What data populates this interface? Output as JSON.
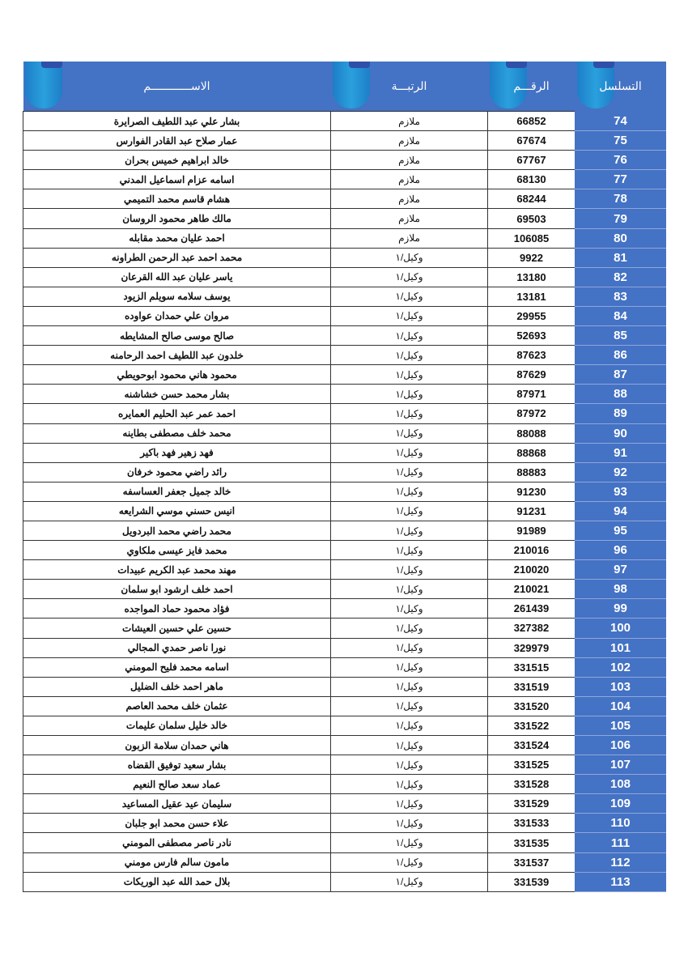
{
  "headers": {
    "seq": "التسلسل",
    "number": "الرقـــم",
    "rank": "الرتبـــة",
    "name": "الاســــــــــــم"
  },
  "colors": {
    "header_bg": "#4472c4",
    "seq_bg": "#4472c4"
  },
  "rows": [
    {
      "seq": "74",
      "number": "66852",
      "rank": "ملازم",
      "name": "بشار علي عبد اللطيف الصرايرة"
    },
    {
      "seq": "75",
      "number": "67674",
      "rank": "ملازم",
      "name": "عمار صلاح عبد القادر الفوارس"
    },
    {
      "seq": "76",
      "number": "67767",
      "rank": "ملازم",
      "name": "خالد ابراهيم خميس بحران"
    },
    {
      "seq": "77",
      "number": "68130",
      "rank": "ملازم",
      "name": "اسامه عزام اسماعيل المدني"
    },
    {
      "seq": "78",
      "number": "68244",
      "rank": "ملازم",
      "name": "هشام قاسم محمد التميمي"
    },
    {
      "seq": "79",
      "number": "69503",
      "rank": "ملازم",
      "name": "مالك طاهر محمود الروسان"
    },
    {
      "seq": "80",
      "number": "106085",
      "rank": "ملازم",
      "name": "احمد عليان محمد مقابله"
    },
    {
      "seq": "81",
      "number": "9922",
      "rank": "وكيل/١",
      "name": "محمد احمد عبد الرحمن الطراونه"
    },
    {
      "seq": "82",
      "number": "13180",
      "rank": "وكيل/١",
      "name": "ياسر عليان عبد الله القرعان"
    },
    {
      "seq": "83",
      "number": "13181",
      "rank": "وكيل/١",
      "name": "يوسف سلامه سويلم الزيود"
    },
    {
      "seq": "84",
      "number": "29955",
      "rank": "وكيل/١",
      "name": "مروان علي حمدان عواوده"
    },
    {
      "seq": "85",
      "number": "52693",
      "rank": "وكيل/١",
      "name": "صالح موسى صالح المشايطه"
    },
    {
      "seq": "86",
      "number": "87623",
      "rank": "وكيل/١",
      "name": "خلدون عبد اللطيف احمد الرحامنه"
    },
    {
      "seq": "87",
      "number": "87629",
      "rank": "وكيل/١",
      "name": "محمود هاني محمود ابوحويطي"
    },
    {
      "seq": "88",
      "number": "87971",
      "rank": "وكيل/١",
      "name": "بشار محمد حسن خشاشنه"
    },
    {
      "seq": "89",
      "number": "87972",
      "rank": "وكيل/١",
      "name": "احمد عمر عبد الحليم العمايره"
    },
    {
      "seq": "90",
      "number": "88088",
      "rank": "وكيل/١",
      "name": "محمد خلف مصطفى بطاينه"
    },
    {
      "seq": "91",
      "number": "88868",
      "rank": "وكيل/١",
      "name": "فهد زهير فهد باكير"
    },
    {
      "seq": "92",
      "number": "88883",
      "rank": "وكيل/١",
      "name": "رائد راضي محمود خرفان"
    },
    {
      "seq": "93",
      "number": "91230",
      "rank": "وكيل/١",
      "name": "خالد جميل جعفر العساسفه"
    },
    {
      "seq": "94",
      "number": "91231",
      "rank": "وكيل/١",
      "name": "انيس حسني موسي الشرايعه"
    },
    {
      "seq": "95",
      "number": "91989",
      "rank": "وكيل/١",
      "name": "محمد راضي محمد البردويل"
    },
    {
      "seq": "96",
      "number": "210016",
      "rank": "وكيل/١",
      "name": "محمد فايز عيسى ملكاوي"
    },
    {
      "seq": "97",
      "number": "210020",
      "rank": "وكيل/١",
      "name": "مهند محمد عبد الكريم عبيدات"
    },
    {
      "seq": "98",
      "number": "210021",
      "rank": "وكيل/١",
      "name": "احمد خلف ارشود ابو سلمان"
    },
    {
      "seq": "99",
      "number": "261439",
      "rank": "وكيل/١",
      "name": "فؤاد محمود حماد المواجده"
    },
    {
      "seq": "100",
      "number": "327382",
      "rank": "وكيل/١",
      "name": "حسين علي حسين العيشات"
    },
    {
      "seq": "101",
      "number": "329979",
      "rank": "وكيل/١",
      "name": "نورا ناصر حمدي المجالي"
    },
    {
      "seq": "102",
      "number": "331515",
      "rank": "وكيل/١",
      "name": "اسامه محمد فليح المومني"
    },
    {
      "seq": "103",
      "number": "331519",
      "rank": "وكيل/١",
      "name": "ماهر احمد خلف الضليل"
    },
    {
      "seq": "104",
      "number": "331520",
      "rank": "وكيل/١",
      "name": "عثمان خلف محمد العاصم"
    },
    {
      "seq": "105",
      "number": "331522",
      "rank": "وكيل/١",
      "name": "خالد خليل سلمان عليمات"
    },
    {
      "seq": "106",
      "number": "331524",
      "rank": "وكيل/١",
      "name": "هاني حمدان سلامة الزبون"
    },
    {
      "seq": "107",
      "number": "331525",
      "rank": "وكيل/١",
      "name": "بشار سعيد توفيق القضاه"
    },
    {
      "seq": "108",
      "number": "331528",
      "rank": "وكيل/١",
      "name": "عماد سعد صالح النعيم"
    },
    {
      "seq": "109",
      "number": "331529",
      "rank": "وكيل/١",
      "name": "سليمان عيد عقيل المساعيد"
    },
    {
      "seq": "110",
      "number": "331533",
      "rank": "وكيل/١",
      "name": "علاء حسن محمد ابو جلبان"
    },
    {
      "seq": "111",
      "number": "331535",
      "rank": "وكيل/١",
      "name": "نادر ناصر مصطفى المومني"
    },
    {
      "seq": "112",
      "number": "331537",
      "rank": "وكيل/١",
      "name": "مامون سالم فارس مومني"
    },
    {
      "seq": "113",
      "number": "331539",
      "rank": "وكيل/١",
      "name": "بلال حمد الله عبد الوريكات"
    }
  ]
}
